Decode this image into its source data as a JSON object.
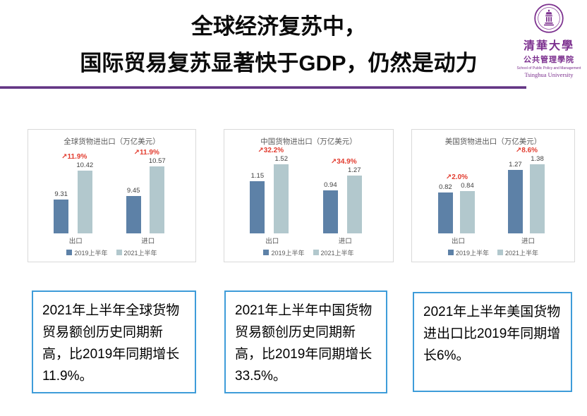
{
  "slide": {
    "title_line1": "全球经济复苏中，",
    "title_line2": "国际贸易复苏显著快于GDP，仍然是动力"
  },
  "logo": {
    "cn_university": "清華大學",
    "cn_school": "公共管理學院",
    "en_school": "School of Public Policy and Management",
    "en_university": "Tsinghua University"
  },
  "chart_data": [
    {
      "type": "bar",
      "title": "全球货物进出口（万亿美元）",
      "categories": [
        "出口",
        "进口"
      ],
      "series": [
        {
          "name": "2019上半年",
          "values": [
            9.31,
            9.45
          ]
        },
        {
          "name": "2021上半年",
          "values": [
            10.42,
            10.57
          ]
        }
      ],
      "growth_labels": [
        "↗11.9%",
        "↗11.9%"
      ],
      "ylim": [
        8,
        10.8
      ],
      "legend_position": "bottom",
      "grid": false
    },
    {
      "type": "bar",
      "title": "中国货物进出口（万亿美元）",
      "categories": [
        "出口",
        "进口"
      ],
      "series": [
        {
          "name": "2019上半年",
          "values": [
            1.15,
            0.94
          ]
        },
        {
          "name": "2021上半年",
          "values": [
            1.52,
            1.27
          ]
        }
      ],
      "growth_labels": [
        "↗32.2%",
        "↗34.9%"
      ],
      "ylim": [
        0,
        1.6
      ],
      "legend_position": "bottom",
      "grid": false
    },
    {
      "type": "bar",
      "title": "美国货物进出口（万亿美元）",
      "categories": [
        "出口",
        "进口"
      ],
      "series": [
        {
          "name": "2019上半年",
          "values": [
            0.82,
            1.27
          ]
        },
        {
          "name": "2021上半年",
          "values": [
            0.84,
            1.38
          ]
        }
      ],
      "growth_labels": [
        "↗2.0%",
        "↗8.6%"
      ],
      "ylim": [
        0,
        1.45
      ],
      "legend_position": "bottom",
      "grid": false
    }
  ],
  "notes": [
    {
      "text": "2021年上半年全球货物贸易额创历史同期新高，比2019年同期增长11.9%。"
    },
    {
      "text": "2021年上半年中国货物贸易额创历史同期新高，比2019年同期增长33.5%。"
    },
    {
      "text": "2021年上半年美国货物进出口比2019年同期增长6%。"
    }
  ],
  "colors": {
    "series_2019": "#5d81a7",
    "series_2021": "#b2c8cd",
    "growth_red": "#e23b2e",
    "panel_border": "#d9d9d9",
    "note_border": "#3e9cd9",
    "accent_purple": "#5e2f7d",
    "logo_purple": "#7b2f8e",
    "text_gray": "#595959"
  }
}
